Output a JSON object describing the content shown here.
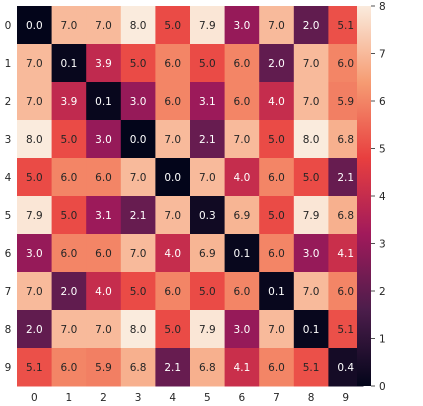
{
  "chart_data": {
    "type": "heatmap",
    "x_ticks": [
      "0",
      "1",
      "2",
      "3",
      "4",
      "5",
      "6",
      "7",
      "8",
      "9"
    ],
    "y_ticks": [
      "0",
      "1",
      "2",
      "3",
      "4",
      "5",
      "6",
      "7",
      "8",
      "9"
    ],
    "matrix": [
      [
        0.0,
        7.0,
        7.0,
        8.0,
        5.0,
        7.9,
        3.0,
        7.0,
        2.0,
        5.1
      ],
      [
        7.0,
        0.1,
        3.9,
        5.0,
        6.0,
        5.0,
        6.0,
        2.0,
        7.0,
        6.0
      ],
      [
        7.0,
        3.9,
        0.1,
        3.0,
        6.0,
        3.1,
        6.0,
        4.0,
        7.0,
        5.9
      ],
      [
        8.0,
        5.0,
        3.0,
        0.0,
        7.0,
        2.1,
        7.0,
        5.0,
        8.0,
        6.8
      ],
      [
        5.0,
        6.0,
        6.0,
        7.0,
        0.0,
        7.0,
        4.0,
        6.0,
        5.0,
        2.1
      ],
      [
        7.9,
        5.0,
        3.1,
        2.1,
        7.0,
        0.3,
        6.9,
        5.0,
        7.9,
        6.8
      ],
      [
        3.0,
        6.0,
        6.0,
        7.0,
        4.0,
        6.9,
        0.1,
        6.0,
        3.0,
        4.1
      ],
      [
        7.0,
        2.0,
        4.0,
        5.0,
        6.0,
        5.0,
        6.0,
        0.1,
        7.0,
        6.0
      ],
      [
        2.0,
        7.0,
        7.0,
        8.0,
        5.0,
        7.9,
        3.0,
        7.0,
        0.1,
        5.1
      ],
      [
        5.1,
        6.0,
        5.9,
        6.8,
        2.1,
        6.8,
        4.1,
        6.0,
        5.1,
        0.4
      ]
    ],
    "annotation_format": "0.0",
    "colorbar": {
      "range": [
        0,
        8
      ],
      "ticks": [
        "0",
        "1",
        "2",
        "3",
        "4",
        "5",
        "6",
        "7",
        "8"
      ]
    },
    "colormap": "rocket",
    "colormap_stops": [
      "#03051a",
      "#4c1d4b",
      "#a11a5b",
      "#e83f3f",
      "#f69c73",
      "#faebdd"
    ]
  }
}
